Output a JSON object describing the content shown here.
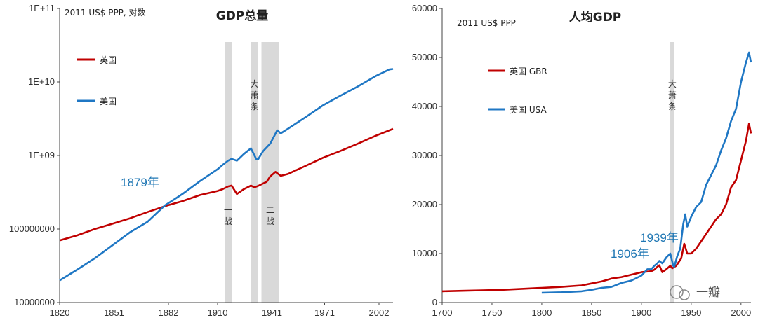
{
  "colors": {
    "uk": "#c00000",
    "us": "#1f77c4",
    "band": "#d9d9d9",
    "axis": "#444444"
  },
  "chart_data": [
    {
      "type": "line",
      "title": "GDP总量",
      "unit_note": "2011 US$ PPP, 对数",
      "yscale": "log",
      "x_ticks": [
        1820,
        1851,
        1882,
        1910,
        1941,
        1971,
        2002
      ],
      "y_ticks": [
        "10000000",
        "100000000",
        "1E+09",
        "1E+10",
        "1E+11"
      ],
      "y_tick_values": [
        10000000,
        100000000,
        1000000000,
        10000000000,
        100000000000
      ],
      "xlim": [
        1820,
        2010
      ],
      "ylim": [
        10000000,
        100000000000
      ],
      "legend_title_uk": "英国",
      "legend_title_us": "美国",
      "bands": [
        {
          "from": 1914,
          "to": 1918,
          "label": "一战"
        },
        {
          "from": 1929,
          "to": 1933,
          "label": "大萧条"
        },
        {
          "from": 1935,
          "to": 1945,
          "label": "二战"
        }
      ],
      "series": [
        {
          "name": "英国",
          "color": "#c00000",
          "x": [
            1820,
            1830,
            1840,
            1850,
            1860,
            1870,
            1880,
            1890,
            1900,
            1910,
            1913,
            1916,
            1918,
            1921,
            1925,
            1929,
            1931,
            1933,
            1938,
            1940,
            1943,
            1946,
            1950,
            1960,
            1970,
            1980,
            1990,
            2000,
            2008,
            2010
          ],
          "y": [
            70000000,
            82000000,
            100000000,
            118000000,
            140000000,
            170000000,
            205000000,
            240000000,
            290000000,
            330000000,
            350000000,
            380000000,
            390000000,
            300000000,
            350000000,
            390000000,
            370000000,
            385000000,
            440000000,
            520000000,
            600000000,
            530000000,
            560000000,
            720000000,
            930000000,
            1150000000,
            1450000000,
            1850000000,
            2200000000,
            2300000000
          ]
        },
        {
          "name": "美国",
          "color": "#1f77c4",
          "x": [
            1820,
            1830,
            1840,
            1850,
            1860,
            1870,
            1880,
            1890,
            1900,
            1910,
            1913,
            1916,
            1918,
            1921,
            1925,
            1929,
            1932,
            1933,
            1936,
            1940,
            1944,
            1946,
            1950,
            1960,
            1970,
            1980,
            1990,
            2000,
            2008,
            2010
          ],
          "y": [
            20000000,
            28000000,
            40000000,
            60000000,
            90000000,
            125000000,
            210000000,
            300000000,
            450000000,
            650000000,
            750000000,
            850000000,
            900000000,
            850000000,
            1050000000,
            1250000000,
            900000000,
            880000000,
            1150000000,
            1450000000,
            2200000000,
            2000000000,
            2300000000,
            3300000000,
            4800000000,
            6500000000,
            8700000000,
            12000000000,
            14800000000,
            15000000000
          ]
        }
      ],
      "annotations": [
        {
          "text": "1879年",
          "x": 1879
        }
      ]
    },
    {
      "type": "line",
      "title": "人均GDP",
      "unit_note": "2011 US$ PPP",
      "x_ticks": [
        1700,
        1750,
        1800,
        1850,
        1900,
        1950,
        2000
      ],
      "y_ticks": [
        "0",
        "10000",
        "20000",
        "30000",
        "40000",
        "50000",
        "60000"
      ],
      "y_tick_values": [
        0,
        10000,
        20000,
        30000,
        40000,
        50000,
        60000
      ],
      "xlim": [
        1700,
        2010
      ],
      "ylim": [
        0,
        60000
      ],
      "legend_title_uk": "英国 GBR",
      "legend_title_us": "美国 USA",
      "bands": [
        {
          "from": 1929,
          "to": 1933,
          "label": "大萧条"
        }
      ],
      "series": [
        {
          "name": "英国 GBR",
          "color": "#c00000",
          "x": [
            1700,
            1720,
            1740,
            1760,
            1780,
            1800,
            1820,
            1840,
            1850,
            1860,
            1870,
            1880,
            1890,
            1900,
            1910,
            1913,
            1916,
            1918,
            1921,
            1925,
            1929,
            1931,
            1935,
            1940,
            1943,
            1946,
            1950,
            1955,
            1960,
            1965,
            1970,
            1975,
            1980,
            1985,
            1990,
            1995,
            2000,
            2005,
            2008,
            2010
          ],
          "y": [
            2300,
            2400,
            2500,
            2600,
            2800,
            3000,
            3200,
            3500,
            3900,
            4300,
            4900,
            5200,
            5700,
            6200,
            6400,
            6700,
            7300,
            7600,
            6200,
            6800,
            7500,
            7000,
            7500,
            9000,
            12000,
            10000,
            10000,
            11000,
            12500,
            14000,
            15500,
            17000,
            18000,
            20000,
            23500,
            25000,
            29000,
            33000,
            36500,
            34500
          ]
        },
        {
          "name": "美国 USA",
          "color": "#1f77c4",
          "x": [
            1800,
            1820,
            1840,
            1850,
            1860,
            1870,
            1880,
            1890,
            1900,
            1906,
            1910,
            1913,
            1916,
            1918,
            1921,
            1925,
            1929,
            1932,
            1933,
            1936,
            1939,
            1942,
            1944,
            1946,
            1950,
            1955,
            1960,
            1965,
            1970,
            1975,
            1980,
            1985,
            1990,
            1995,
            2000,
            2005,
            2008,
            2010
          ],
          "y": [
            2000,
            2100,
            2300,
            2600,
            3000,
            3200,
            4000,
            4500,
            5500,
            6800,
            6800,
            7500,
            8000,
            8500,
            8000,
            9200,
            10000,
            7500,
            7300,
            9500,
            11000,
            16000,
            18000,
            15500,
            17500,
            19500,
            20500,
            24000,
            26000,
            28000,
            31000,
            33500,
            37000,
            39500,
            45000,
            49000,
            51000,
            49000
          ]
        }
      ],
      "annotations": [
        {
          "text": "1906年",
          "x": 1906
        },
        {
          "text": "1939年",
          "x": 1939
        }
      ]
    }
  ],
  "watermark": {
    "text": "一瓣"
  }
}
